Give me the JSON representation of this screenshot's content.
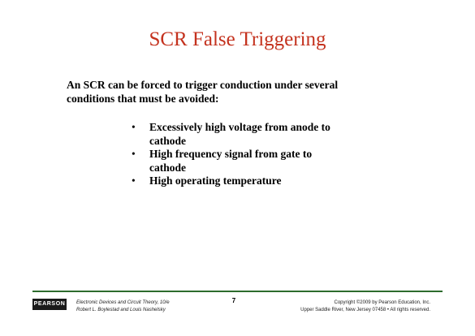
{
  "slide": {
    "title": "SCR False Triggering",
    "intro_line1": "An SCR can be forced to trigger conduction under several",
    "intro_line2": "conditions that must be avoided:",
    "bullet_symbol": "•",
    "bullets": [
      {
        "line1": "Excessively high voltage from anode to",
        "line2": "cathode"
      },
      {
        "line1": "High frequency signal from gate to",
        "line2": "cathode"
      },
      {
        "line1": "High operating temperature",
        "line2": ""
      }
    ]
  },
  "footer": {
    "logo_text": "PEARSON",
    "book_title": "Electronic Devices and Circuit Theory, 10/e",
    "authors": "Robert L. Boylestad and Louis Nashelsky",
    "page_number": "7",
    "copyright_line1": "Copyright ©2009 by Pearson Education, Inc.",
    "copyright_line2": "Upper Saddle River, New Jersey 07458 • All rights reserved."
  },
  "colors": {
    "title": "#c4321e",
    "rule": "#2d6b2d",
    "logo_bg": "#1a1a1a"
  }
}
